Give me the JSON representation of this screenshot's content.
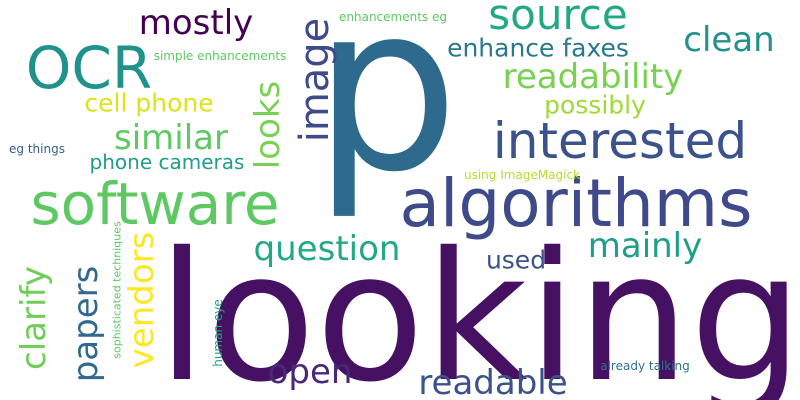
{
  "words": [
    {
      "text": "looking",
      "color": "#471163",
      "orientation": "horizontal"
    },
    {
      "text": "p",
      "color": "#2d6a8e",
      "orientation": "horizontal"
    },
    {
      "text": "algorithms",
      "color": "#3e4a89",
      "orientation": "horizontal"
    },
    {
      "text": "software",
      "color": "#5ec962",
      "orientation": "horizontal"
    },
    {
      "text": "interested",
      "color": "#3b528b",
      "orientation": "horizontal"
    },
    {
      "text": "OCR",
      "color": "#21918c",
      "orientation": "horizontal"
    },
    {
      "text": "source",
      "color": "#22a884",
      "orientation": "horizontal"
    },
    {
      "text": "image",
      "color": "#3e4a89",
      "orientation": "vertical"
    },
    {
      "text": "mostly",
      "color": "#440154",
      "orientation": "horizontal"
    },
    {
      "text": "clean",
      "color": "#21918c",
      "orientation": "horizontal"
    },
    {
      "text": "enhance faxes",
      "color": "#2a788e",
      "orientation": "horizontal"
    },
    {
      "text": "readability",
      "color": "#7ad151",
      "orientation": "horizontal"
    },
    {
      "text": "possibly",
      "color": "#a0da39",
      "orientation": "horizontal"
    },
    {
      "text": "cell phone",
      "color": "#dde318",
      "orientation": "horizontal"
    },
    {
      "text": "similar",
      "color": "#5ec962",
      "orientation": "horizontal"
    },
    {
      "text": "looks",
      "color": "#7ad151",
      "orientation": "vertical"
    },
    {
      "text": "phone cameras",
      "color": "#1f9e89",
      "orientation": "horizontal"
    },
    {
      "text": "question",
      "color": "#22a884",
      "orientation": "horizontal"
    },
    {
      "text": "mainly",
      "color": "#1f9e89",
      "orientation": "horizontal"
    },
    {
      "text": "used",
      "color": "#3b528b",
      "orientation": "horizontal"
    },
    {
      "text": "vendors",
      "color": "#fde725",
      "orientation": "vertical"
    },
    {
      "text": "papers",
      "color": "#31688e",
      "orientation": "vertical"
    },
    {
      "text": "clarify",
      "color": "#6ece58",
      "orientation": "vertical"
    },
    {
      "text": "open",
      "color": "#482878",
      "orientation": "horizontal"
    },
    {
      "text": "readable",
      "color": "#3b528b",
      "orientation": "horizontal"
    },
    {
      "text": "enhancements eg",
      "color": "#5ec962",
      "orientation": "horizontal"
    },
    {
      "text": "simple enhancements",
      "color": "#5ec962",
      "orientation": "horizontal"
    },
    {
      "text": "eg things",
      "color": "#355f8d",
      "orientation": "horizontal"
    },
    {
      "text": "using ImageMagick",
      "color": "#b5de2b",
      "orientation": "horizontal"
    },
    {
      "text": "sophisticated techniques",
      "color": "#5ec962",
      "orientation": "vertical"
    },
    {
      "text": "human eye",
      "color": "#20a386",
      "orientation": "vertical"
    },
    {
      "text": "already talking",
      "color": "#2c728e",
      "orientation": "horizontal"
    }
  ]
}
